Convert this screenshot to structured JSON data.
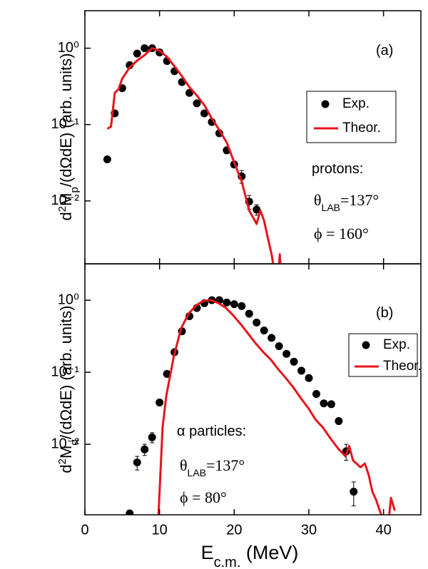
{
  "chart_data": [
    {
      "type": "line",
      "log_y": true,
      "xlim": [
        0,
        45
      ],
      "ylim": [
        0.0015,
        3.1
      ],
      "yticks": [
        {
          "value": 0.01,
          "label": "10⁻²"
        },
        {
          "value": 0.1,
          "label": "10⁻¹"
        },
        {
          "value": 1,
          "label": "10⁰"
        }
      ],
      "y_label": [
        "d",
        "2",
        "M",
        "p",
        "/(dΩdE) (arb. units)"
      ],
      "annotations": [
        [
          "(a)"
        ],
        [
          "protons:"
        ],
        [
          "θ",
          "LAB",
          "=137°"
        ],
        [
          "ϕ = 160°"
        ]
      ],
      "series": [
        {
          "name": "Exp.",
          "type": "scatter",
          "color": "#000000",
          "x": [
            3,
            4,
            5,
            6,
            7,
            8,
            9,
            10,
            11,
            12,
            13,
            14,
            15,
            16,
            17,
            18,
            19,
            20,
            21,
            22,
            23
          ],
          "values": [
            0.035,
            0.14,
            0.3,
            0.6,
            0.85,
            1.0,
            1.0,
            0.88,
            0.68,
            0.5,
            0.36,
            0.26,
            0.19,
            0.14,
            0.108,
            0.077,
            0.046,
            0.03,
            0.021,
            0.0098,
            0.0077
          ],
          "errors": [
            0.003,
            null,
            null,
            null,
            null,
            null,
            null,
            null,
            null,
            null,
            null,
            null,
            null,
            null,
            null,
            null,
            null,
            null,
            0.004,
            0.002,
            0.0012
          ]
        },
        {
          "name": "Theor.",
          "type": "line",
          "color": "#e8141c",
          "x": [
            3,
            3.5,
            4,
            4.5,
            5,
            6,
            7,
            8,
            9,
            10,
            11,
            12,
            13,
            14,
            15,
            16,
            17,
            18,
            19,
            20,
            21,
            22,
            23,
            23.5,
            24,
            24.5,
            25,
            25.5,
            null,
            25.9,
            26.1,
            26.3
          ],
          "values": [
            0.088,
            0.094,
            0.26,
            0.29,
            0.4,
            0.56,
            0.69,
            0.81,
            1.0,
            0.93,
            0.77,
            0.58,
            0.43,
            0.31,
            0.24,
            0.18,
            0.12,
            0.085,
            0.058,
            0.032,
            0.018,
            0.0075,
            0.005,
            0.0075,
            0.0055,
            0.0033,
            0.002,
            0.001,
            null,
            0.001,
            0.002,
            0.001
          ]
        }
      ]
    },
    {
      "type": "line",
      "log_y": true,
      "xlim": [
        0,
        45
      ],
      "ylim": [
        0.00105,
        3.2
      ],
      "xticks": [
        0,
        10,
        20,
        30,
        40
      ],
      "yticks": [
        {
          "value": 0.01,
          "label": "10⁻²"
        },
        {
          "value": 0.1,
          "label": "10⁻¹"
        },
        {
          "value": 1,
          "label": "10⁰"
        }
      ],
      "x_label": [
        "E",
        "c.m.",
        " (MeV)"
      ],
      "y_label": [
        "d",
        "2",
        "M",
        "α",
        "/(dΩdE) (arb. units)"
      ],
      "annotations": [
        [
          "(b)"
        ],
        [
          "α particles:"
        ],
        [
          "θ",
          "LAB",
          "=137°"
        ],
        [
          "ϕ = 80°"
        ]
      ],
      "series": [
        {
          "name": "Exp.",
          "type": "scatter",
          "color": "#000000",
          "x": [
            6,
            7,
            8,
            9,
            10,
            11,
            12,
            13,
            14,
            15,
            16,
            17,
            18,
            19,
            20,
            21,
            22,
            23,
            24,
            25,
            26,
            27,
            28,
            29,
            30,
            31,
            32,
            33,
            34,
            35,
            36
          ],
          "values": [
            0.0011,
            0.0056,
            0.0085,
            0.0125,
            0.038,
            0.095,
            0.19,
            0.37,
            0.6,
            0.78,
            0.91,
            1.0,
            1.0,
            0.93,
            0.88,
            0.83,
            0.65,
            0.49,
            0.38,
            0.3,
            0.23,
            0.18,
            0.14,
            0.105,
            0.083,
            0.05,
            0.037,
            0.036,
            0.021,
            0.008,
            0.0022
          ],
          "errors": [
            null,
            0.0012,
            0.0015,
            0.002,
            null,
            null,
            null,
            null,
            null,
            null,
            null,
            null,
            null,
            null,
            null,
            null,
            null,
            null,
            null,
            null,
            null,
            null,
            null,
            null,
            null,
            null,
            null,
            null,
            null,
            0.002,
            0.0008
          ]
        },
        {
          "name": "Theor.",
          "type": "line",
          "color": "#e8141c",
          "x": [
            9.8,
            10,
            10.4,
            10.9,
            11.9,
            12.9,
            13.9,
            14.9,
            15.9,
            16.9,
            17.9,
            18.9,
            19.9,
            20.9,
            21.9,
            22.9,
            23.9,
            24.9,
            25.9,
            26.9,
            27.9,
            28.9,
            29.9,
            30.9,
            31.9,
            32.9,
            33.9,
            34.9,
            35.4,
            35.9,
            36.9,
            37.5,
            38,
            38.5,
            39,
            39.5,
            39.9,
            null,
            40.7,
            41,
            41.5
          ],
          "values": [
            0.0008,
            0.0022,
            0.017,
            0.047,
            0.165,
            0.41,
            0.65,
            0.85,
            0.98,
            1.0,
            0.91,
            0.78,
            0.61,
            0.46,
            0.34,
            0.25,
            0.19,
            0.15,
            0.11,
            0.083,
            0.062,
            0.044,
            0.032,
            0.022,
            0.017,
            0.012,
            0.0088,
            0.0068,
            0.0095,
            0.006,
            0.0048,
            0.0054,
            0.0038,
            0.0022,
            0.0017,
            0.0012,
            0.0009,
            null,
            0.0009,
            0.0018,
            0.0012
          ]
        }
      ]
    }
  ]
}
